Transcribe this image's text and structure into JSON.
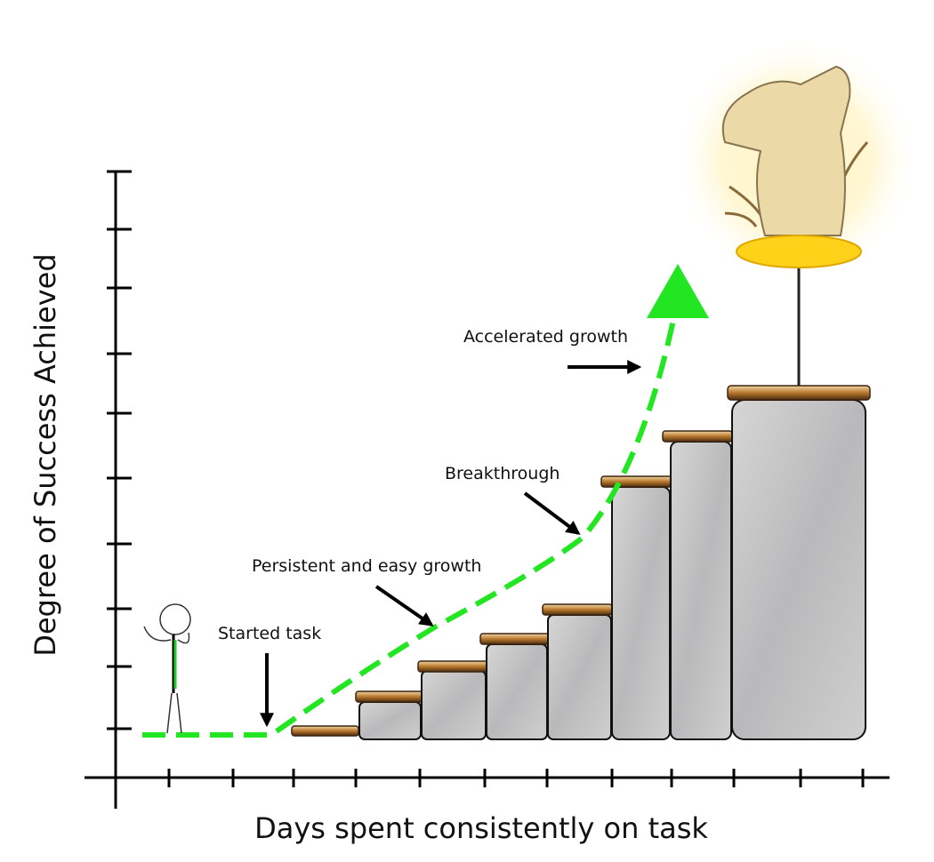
{
  "diagram": {
    "x_axis_label": "Days spent consistently on task",
    "y_axis_label": "Degree of Success Achieved",
    "annotations": [
      "Started task",
      "Persistent and easy growth",
      "Breakthrough",
      "Accelerated growth"
    ]
  }
}
